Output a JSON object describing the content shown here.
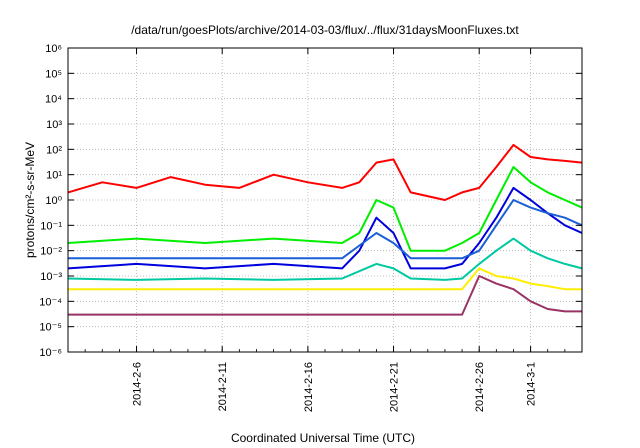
{
  "chart_data": {
    "type": "line",
    "title": "/data/run/goesPlots/archive/2014-03-03/flux/../flux/31daysMoonFluxes.txt",
    "xlabel": "Coordinated Universal Time (UTC)",
    "ylabel": "protons/cm²-s-sr-MeV",
    "y_scale": "log",
    "ylim_exponents": [
      -6,
      6
    ],
    "y_tick_labels": [
      "10⁻⁶",
      "10⁻⁵",
      "10⁻⁴",
      "10⁻³",
      "10⁻²",
      "10⁻¹",
      "10⁰",
      "10¹",
      "10²",
      "10³",
      "10⁴",
      "10⁵",
      "10⁶"
    ],
    "x_range": [
      "2014-02-02",
      "2014-03-04"
    ],
    "x_ticks": [
      "2014-2-6",
      "2014-2-11",
      "2014-2-16",
      "2014-2-21",
      "2014-2-26",
      "2014-3-1"
    ],
    "x_tick_dates": [
      "2014-02-06",
      "2014-02-11",
      "2014-02-16",
      "2014-02-21",
      "2014-02-26",
      "2014-03-01"
    ],
    "grid": true,
    "legend": "none",
    "series": [
      {
        "color": "#ff0000",
        "x": [
          "2014-02-02",
          "2014-02-04",
          "2014-02-06",
          "2014-02-08",
          "2014-02-10",
          "2014-02-12",
          "2014-02-14",
          "2014-02-16",
          "2014-02-18",
          "2014-02-19",
          "2014-02-20",
          "2014-02-21",
          "2014-02-22",
          "2014-02-24",
          "2014-02-25",
          "2014-02-26",
          "2014-02-27",
          "2014-02-28",
          "2014-03-01",
          "2014-03-02",
          "2014-03-03",
          "2014-03-04"
        ],
        "y": [
          2,
          5,
          3,
          8,
          4,
          3,
          10,
          5,
          3,
          5,
          30,
          40,
          2,
          1,
          2,
          3,
          20,
          150,
          50,
          40,
          35,
          30
        ]
      },
      {
        "color": "#00ee00",
        "x": [
          "2014-02-02",
          "2014-02-06",
          "2014-02-10",
          "2014-02-14",
          "2014-02-18",
          "2014-02-19",
          "2014-02-20",
          "2014-02-21",
          "2014-02-22",
          "2014-02-24",
          "2014-02-25",
          "2014-02-26",
          "2014-02-27",
          "2014-02-28",
          "2014-03-01",
          "2014-03-02",
          "2014-03-03",
          "2014-03-04"
        ],
        "y": [
          0.02,
          0.03,
          0.02,
          0.03,
          0.02,
          0.05,
          1,
          0.5,
          0.01,
          0.01,
          0.02,
          0.05,
          1,
          20,
          5,
          2,
          1,
          0.5
        ]
      },
      {
        "color": "#0000dd",
        "x": [
          "2014-02-02",
          "2014-02-06",
          "2014-02-10",
          "2014-02-14",
          "2014-02-18",
          "2014-02-19",
          "2014-02-20",
          "2014-02-21",
          "2014-02-22",
          "2014-02-24",
          "2014-02-25",
          "2014-02-26",
          "2014-02-27",
          "2014-02-28",
          "2014-03-01",
          "2014-03-02",
          "2014-03-03",
          "2014-03-04"
        ],
        "y": [
          0.002,
          0.003,
          0.002,
          0.003,
          0.002,
          0.01,
          0.2,
          0.05,
          0.002,
          0.002,
          0.003,
          0.02,
          0.2,
          3,
          1,
          0.3,
          0.1,
          0.05
        ]
      },
      {
        "color": "#1a5fd6",
        "x": [
          "2014-02-02",
          "2014-02-06",
          "2014-02-10",
          "2014-02-14",
          "2014-02-18",
          "2014-02-20",
          "2014-02-21",
          "2014-02-22",
          "2014-02-24",
          "2014-02-25",
          "2014-02-26",
          "2014-02-27",
          "2014-02-28",
          "2014-03-01",
          "2014-03-02",
          "2014-03-03",
          "2014-03-04"
        ],
        "y": [
          0.005,
          0.005,
          0.005,
          0.005,
          0.005,
          0.05,
          0.02,
          0.005,
          0.005,
          0.005,
          0.01,
          0.1,
          1,
          0.5,
          0.3,
          0.2,
          0.1
        ]
      },
      {
        "color": "#00c8a0",
        "x": [
          "2014-02-02",
          "2014-02-06",
          "2014-02-10",
          "2014-02-14",
          "2014-02-18",
          "2014-02-20",
          "2014-02-21",
          "2014-02-22",
          "2014-02-24",
          "2014-02-25",
          "2014-02-26",
          "2014-02-27",
          "2014-02-28",
          "2014-03-01",
          "2014-03-02",
          "2014-03-03",
          "2014-03-04"
        ],
        "y": [
          0.0008,
          0.0007,
          0.0008,
          0.0007,
          0.0008,
          0.003,
          0.002,
          0.0008,
          0.0007,
          0.0008,
          0.003,
          0.01,
          0.03,
          0.01,
          0.005,
          0.003,
          0.002
        ]
      },
      {
        "color": "#ffee00",
        "x": [
          "2014-02-02",
          "2014-02-06",
          "2014-02-10",
          "2014-02-14",
          "2014-02-18",
          "2014-02-22",
          "2014-02-24",
          "2014-02-25",
          "2014-02-26",
          "2014-02-27",
          "2014-02-28",
          "2014-03-01",
          "2014-03-02",
          "2014-03-03",
          "2014-03-04"
        ],
        "y": [
          0.0003,
          0.0003,
          0.0003,
          0.0003,
          0.0003,
          0.0003,
          0.0003,
          0.0003,
          0.002,
          0.001,
          0.0008,
          0.0005,
          0.0004,
          0.0003,
          0.0003
        ]
      },
      {
        "color": "#993366",
        "x": [
          "2014-02-02",
          "2014-02-06",
          "2014-02-10",
          "2014-02-14",
          "2014-02-18",
          "2014-02-22",
          "2014-02-24",
          "2014-02-25",
          "2014-02-26",
          "2014-02-27",
          "2014-02-28",
          "2014-03-01",
          "2014-03-02",
          "2014-03-03",
          "2014-03-04"
        ],
        "y": [
          3e-05,
          3e-05,
          3e-05,
          3e-05,
          3e-05,
          3e-05,
          3e-05,
          3e-05,
          0.001,
          0.0005,
          0.0003,
          0.0001,
          5e-05,
          4e-05,
          4e-05
        ]
      }
    ]
  }
}
